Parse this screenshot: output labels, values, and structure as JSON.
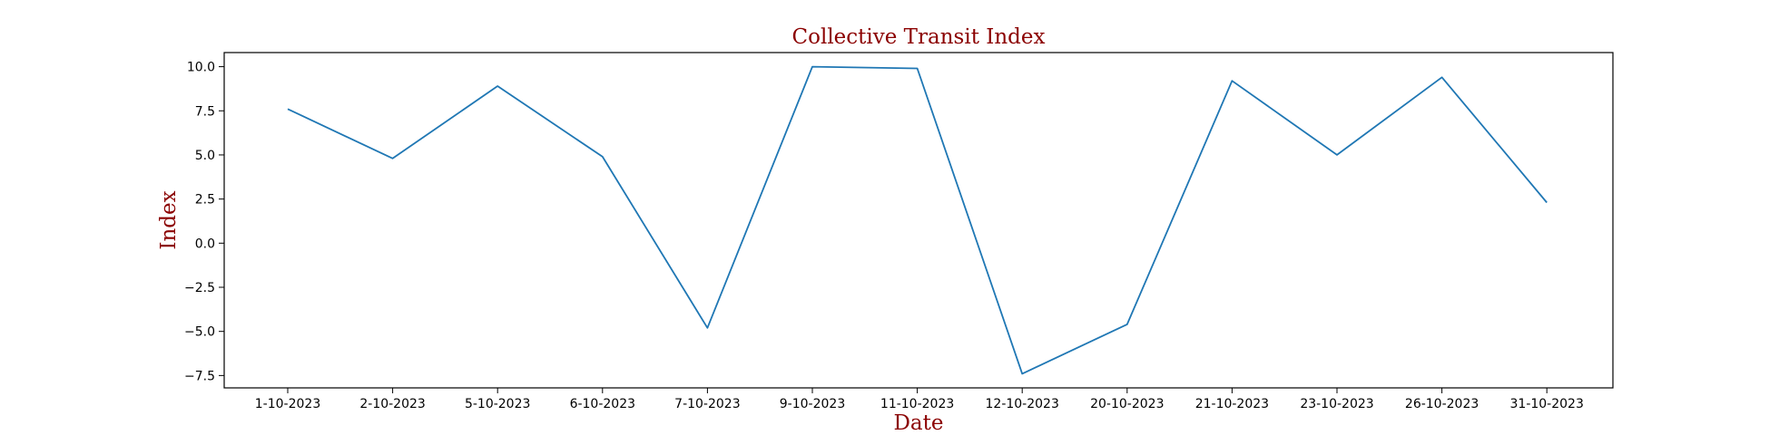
{
  "chart_data": {
    "type": "line",
    "title": "Collective Transit Index",
    "xlabel": "Date",
    "ylabel": "Index",
    "categories": [
      "1-10-2023",
      "2-10-2023",
      "5-10-2023",
      "6-10-2023",
      "7-10-2023",
      "9-10-2023",
      "11-10-2023",
      "12-10-2023",
      "20-10-2023",
      "21-10-2023",
      "23-10-2023",
      "26-10-2023",
      "31-10-2023"
    ],
    "series": [
      {
        "values": [
          7.6,
          4.8,
          8.9,
          4.9,
          -4.8,
          10.0,
          9.9,
          -7.4,
          -4.6,
          9.2,
          5.0,
          9.4,
          2.3
        ],
        "color": "#1f77b4"
      }
    ],
    "yticks": [
      10.0,
      7.5,
      5.0,
      2.5,
      0.0,
      -2.5,
      -5.0,
      -7.5
    ],
    "ytick_labels": [
      "10.0",
      "7.5",
      "5.0",
      "2.5",
      "0.0",
      "−2.5",
      "−5.0",
      "−7.5"
    ],
    "ylim": [
      -8.2,
      10.8
    ],
    "grid": false,
    "legend": false
  }
}
